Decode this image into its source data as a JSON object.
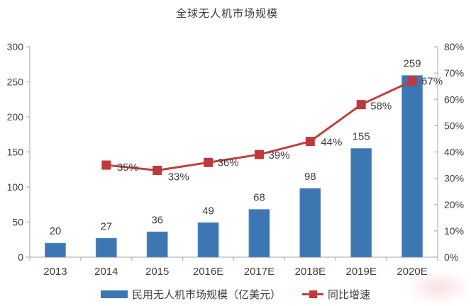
{
  "title": "全球无人机市场规模",
  "legend": {
    "bar_label": "民用无人机市场规模（亿美元）",
    "line_label": "同比增速"
  },
  "chart_data": {
    "type": "combo_bar_line",
    "title": "全球无人机市场规模",
    "categories": [
      "2013",
      "2014",
      "2015",
      "2016E",
      "2017E",
      "2018E",
      "2019E",
      "2020E"
    ],
    "series": [
      {
        "name": "民用无人机市场规模（亿美元）",
        "type": "bar",
        "axis": "left",
        "values": [
          20,
          27,
          36,
          49,
          68,
          98,
          155,
          259
        ],
        "data_labels": [
          "20",
          "27",
          "36",
          "49",
          "68",
          "98",
          "155",
          "259"
        ],
        "color": "#3c77b4"
      },
      {
        "name": "同比增速",
        "type": "line",
        "axis": "right",
        "values": [
          null,
          35,
          33,
          36,
          39,
          44,
          58,
          67
        ],
        "data_labels": [
          "",
          "35%",
          "33%",
          "36%",
          "39%",
          "44%",
          "58%",
          "67%"
        ],
        "color": "#c0413d",
        "marker_color": "#bc3a3c"
      }
    ],
    "left_axis": {
      "min": 0,
      "max": 300,
      "step": 50,
      "ticks": [
        "0",
        "50",
        "100",
        "150",
        "200",
        "250",
        "300"
      ]
    },
    "right_axis": {
      "min": 0,
      "max": 80,
      "step": 10,
      "ticks": [
        "0%",
        "10%",
        "20%",
        "30%",
        "40%",
        "50%",
        "60%",
        "70%",
        "80%"
      ]
    },
    "grid": false,
    "legend_position": "bottom",
    "axis_color": "#b9b9b9",
    "text_color": "#3f3f3f"
  }
}
